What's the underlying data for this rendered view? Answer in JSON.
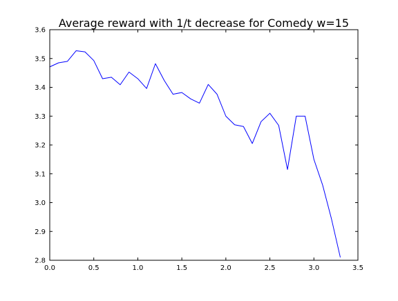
{
  "chart_data": {
    "type": "line",
    "title": "Average reward with 1/t decrease for Comedy w=15",
    "xlabel": "",
    "ylabel": "",
    "xlim": [
      0.0,
      3.5
    ],
    "ylim": [
      2.8,
      3.6
    ],
    "xticks": [
      0.0,
      0.5,
      1.0,
      1.5,
      2.0,
      2.5,
      3.0,
      3.5
    ],
    "xtick_labels": [
      "0.0",
      "0.5",
      "1.0",
      "1.5",
      "2.0",
      "2.5",
      "3.0",
      "3.5"
    ],
    "yticks": [
      2.8,
      2.9,
      3.0,
      3.1,
      3.2,
      3.3,
      3.4,
      3.5,
      3.6
    ],
    "ytick_labels": [
      "2.8",
      "2.9",
      "3.0",
      "3.1",
      "3.2",
      "3.3",
      "3.4",
      "3.5",
      "3.6"
    ],
    "grid": false,
    "legend": "none",
    "series": [
      {
        "color": "#0000ff",
        "x": [
          0.0,
          0.1,
          0.2,
          0.3,
          0.4,
          0.5,
          0.6,
          0.7,
          0.8,
          0.9,
          1.0,
          1.1,
          1.2,
          1.3,
          1.4,
          1.5,
          1.6,
          1.7,
          1.8,
          1.9,
          2.0,
          2.1,
          2.2,
          2.3,
          2.4,
          2.5,
          2.6,
          2.7,
          2.8,
          2.9,
          3.0,
          3.1,
          3.2,
          3.3
        ],
        "y": [
          3.471,
          3.485,
          3.49,
          3.527,
          3.523,
          3.493,
          3.43,
          3.435,
          3.409,
          3.453,
          3.43,
          3.396,
          3.482,
          3.424,
          3.376,
          3.382,
          3.36,
          3.345,
          3.41,
          3.376,
          3.3,
          3.27,
          3.264,
          3.205,
          3.281,
          3.31,
          3.268,
          3.115,
          3.3,
          3.3,
          3.15,
          3.06,
          2.943,
          2.81
        ]
      }
    ]
  }
}
